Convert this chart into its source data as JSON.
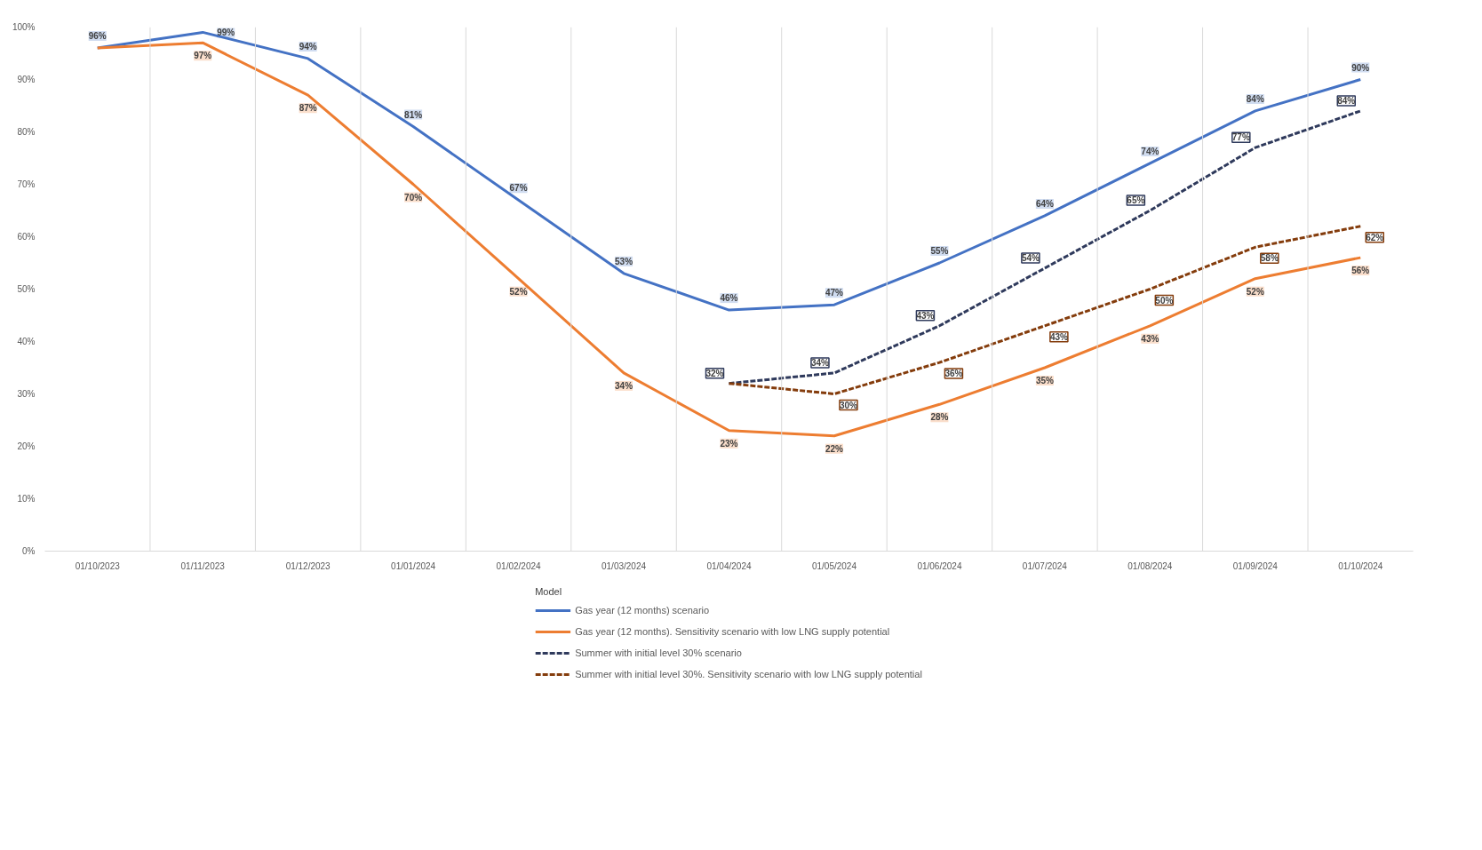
{
  "chart_data": {
    "type": "line",
    "categories": [
      "01/10/2023",
      "01/11/2023",
      "01/12/2023",
      "01/01/2024",
      "01/02/2024",
      "01/03/2024",
      "01/04/2024",
      "01/05/2024",
      "01/06/2024",
      "01/07/2024",
      "01/08/2024",
      "01/09/2024",
      "01/10/2024"
    ],
    "series": [
      {
        "name": "Gas year (12 months) scenario",
        "color": "#4472c4",
        "line_style": "solid",
        "values": [
          96,
          99,
          94,
          81,
          67,
          53,
          46,
          47,
          55,
          64,
          74,
          84,
          90
        ],
        "value_labels": [
          "96%",
          "99%",
          "94%",
          "81%",
          "67%",
          "53%",
          "46%",
          "47%",
          "55%",
          "64%",
          "74%",
          "84%",
          "90%"
        ]
      },
      {
        "name": "Gas year (12 months). Sensitivity scenario with low LNG supply potential",
        "color": "#ed7d31",
        "line_style": "solid",
        "values": [
          96,
          97,
          87,
          70,
          52,
          34,
          23,
          22,
          28,
          35,
          43,
          52,
          56
        ],
        "value_labels": [
          null,
          "97%",
          "87%",
          "70%",
          "52%",
          "34%",
          "23%",
          "22%",
          "28%",
          "35%",
          "43%",
          "52%",
          "56%"
        ]
      },
      {
        "name": "Summer with initial level 30% scenario",
        "color": "#2f3a5c",
        "line_style": "dashed",
        "values": [
          null,
          null,
          null,
          null,
          null,
          null,
          32,
          34,
          43,
          54,
          65,
          77,
          84
        ],
        "value_labels": [
          null,
          null,
          null,
          null,
          null,
          null,
          "32%",
          "34%",
          "43%",
          "54%",
          "65%",
          "77%",
          "84%"
        ]
      },
      {
        "name": "Summer with initial level 30%. Sensitivity scenario with low LNG supply potential",
        "color": "#843c0c",
        "line_style": "dashed",
        "values": [
          null,
          null,
          null,
          null,
          null,
          null,
          32,
          30,
          36,
          43,
          50,
          58,
          62
        ],
        "value_labels": [
          null,
          null,
          null,
          null,
          null,
          null,
          null,
          "30%",
          "36%",
          "43%",
          "50%",
          "58%",
          "62%"
        ]
      }
    ],
    "ylim": [
      0,
      100
    ],
    "yticks": [
      {
        "value": 0,
        "label": "0%"
      },
      {
        "value": 10,
        "label": "10%"
      },
      {
        "value": 20,
        "label": "20%"
      },
      {
        "value": 30,
        "label": "30%"
      },
      {
        "value": 40,
        "label": "40%"
      },
      {
        "value": 50,
        "label": "50%"
      },
      {
        "value": 60,
        "label": "60%"
      },
      {
        "value": 70,
        "label": "70%"
      },
      {
        "value": 80,
        "label": "80%"
      },
      {
        "value": 90,
        "label": "90%"
      },
      {
        "value": 100,
        "label": "100%"
      }
    ],
    "grid": "x",
    "legend": "bottom",
    "legend_title": "Model",
    "marker": "none"
  }
}
